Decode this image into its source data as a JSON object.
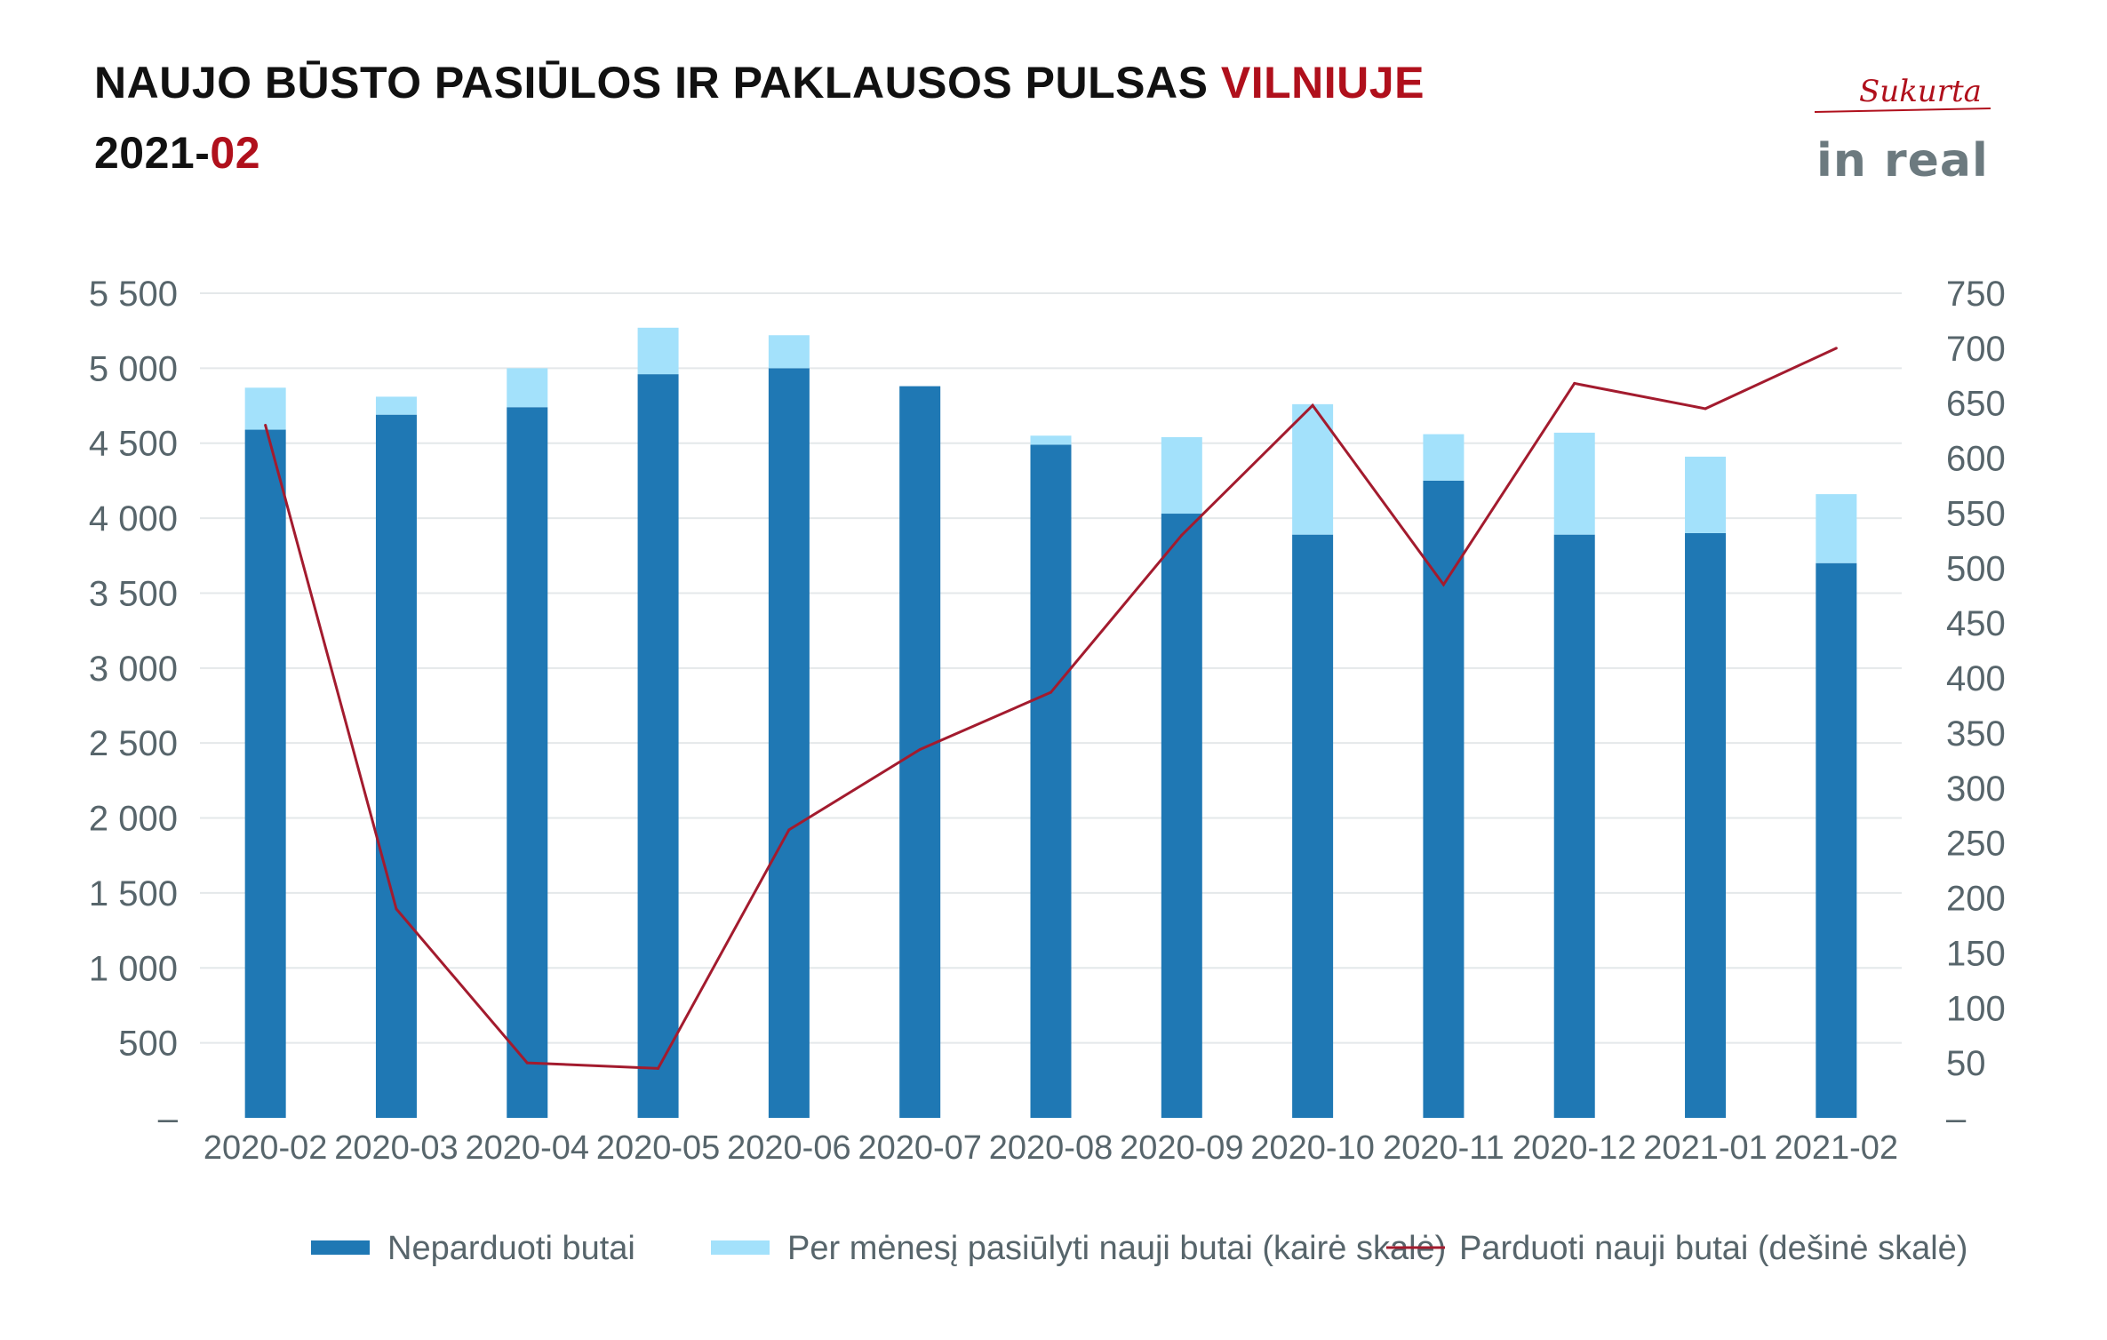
{
  "header": {
    "title_part1": "NAUJO BŪSTO PASIŪLOS IR PAKLAUSOS PULSAS ",
    "title_part2": "VILNIUJE",
    "subtitle_part1": "2021-",
    "subtitle_part2": "02"
  },
  "logo": {
    "script_text": "Sukurta",
    "brand_text": "in real"
  },
  "colors": {
    "accent": "#b0101c",
    "dark_bar": "#1f78b4",
    "light_bar": "#a3e1fb",
    "line": "#a31b2e",
    "axis_text": "#57656b",
    "grid": "#e4e8ea"
  },
  "chart_data": {
    "type": "bar",
    "categories": [
      "2020-02",
      "2020-03",
      "2020-04",
      "2020-05",
      "2020-06",
      "2020-07",
      "2020-08",
      "2020-09",
      "2020-10",
      "2020-11",
      "2020-12",
      "2021-01",
      "2021-02"
    ],
    "series": [
      {
        "name": "Neparduoti butai",
        "type": "bar",
        "axis": "left",
        "stacked": true,
        "values": [
          4590,
          4690,
          4740,
          4960,
          5000,
          4880,
          4490,
          4030,
          3890,
          4250,
          3890,
          3900,
          3700
        ]
      },
      {
        "name": "Per mėnesį pasiūlyti nauji butai (kairė skalė)",
        "type": "bar",
        "axis": "left",
        "stacked": true,
        "values": [
          280,
          120,
          260,
          310,
          220,
          0,
          60,
          510,
          870,
          310,
          680,
          510,
          460
        ]
      },
      {
        "name": "Parduoti nauji butai (dešinė skalė)",
        "type": "line",
        "axis": "right",
        "values": [
          630,
          190,
          50,
          45,
          262,
          335,
          387,
          530,
          648,
          485,
          668,
          645,
          700
        ]
      }
    ],
    "y_left": {
      "min": 0,
      "max": 5500,
      "ticks": [
        "–",
        "500",
        "1 000",
        "1 500",
        "2 000",
        "2 500",
        "3 000",
        "3 500",
        "4 000",
        "4 500",
        "5 000",
        "5 500"
      ]
    },
    "y_right": {
      "min": 0,
      "max": 750,
      "ticks": [
        "–",
        "50",
        "100",
        "150",
        "200",
        "250",
        "300",
        "350",
        "400",
        "450",
        "500",
        "550",
        "600",
        "650",
        "700",
        "750"
      ]
    },
    "grid": true,
    "legend_position": "bottom"
  }
}
